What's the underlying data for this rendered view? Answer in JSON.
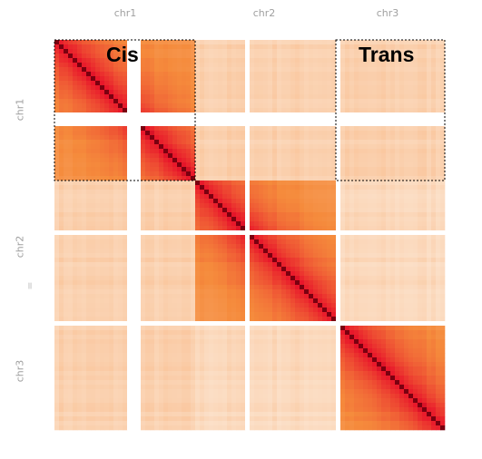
{
  "chromosomes": [
    {
      "name": "chr1",
      "share": 0.36
    },
    {
      "name": "chr2",
      "share": 0.36
    },
    {
      "name": "chr3",
      "share": 0.28
    }
  ],
  "regions": {
    "cis_label": "Cis",
    "trans_label": "Trans"
  },
  "separator_glyph": "=",
  "colors": {
    "low": "#fdf2e6",
    "mid": "#f58b3c",
    "high": "#e8162a",
    "diagonal": "#7a0010",
    "box_border": "#000000"
  }
}
